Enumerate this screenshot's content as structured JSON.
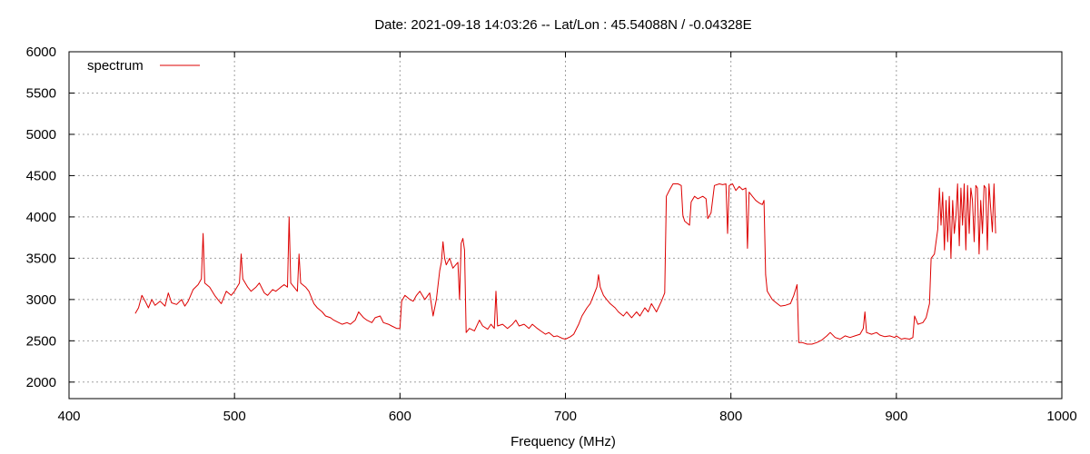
{
  "chart_data": {
    "type": "line",
    "title": "Date: 2021-09-18 14:03:26  --  Lat/Lon : 45.54088N / -0.04328E",
    "xlabel": "Frequency (MHz)",
    "ylabel": "",
    "xlim": [
      400,
      1000
    ],
    "ylim": [
      1800,
      6000
    ],
    "x_ticks": [
      400,
      500,
      600,
      700,
      800,
      900,
      1000
    ],
    "y_ticks": [
      2000,
      2500,
      3000,
      3500,
      4000,
      4500,
      5000,
      5500,
      6000
    ],
    "grid": true,
    "legend_position": "top-left",
    "series": [
      {
        "name": "spectrum",
        "color": "#dd0000",
        "points": [
          [
            440,
            2830
          ],
          [
            442,
            2900
          ],
          [
            444,
            3050
          ],
          [
            446,
            2980
          ],
          [
            448,
            2900
          ],
          [
            450,
            3000
          ],
          [
            452,
            2930
          ],
          [
            455,
            2980
          ],
          [
            458,
            2920
          ],
          [
            460,
            3080
          ],
          [
            462,
            2960
          ],
          [
            465,
            2940
          ],
          [
            468,
            3000
          ],
          [
            470,
            2920
          ],
          [
            472,
            2980
          ],
          [
            475,
            3120
          ],
          [
            478,
            3180
          ],
          [
            480,
            3250
          ],
          [
            481,
            3800
          ],
          [
            482,
            3200
          ],
          [
            485,
            3150
          ],
          [
            488,
            3050
          ],
          [
            490,
            3000
          ],
          [
            492,
            2950
          ],
          [
            495,
            3100
          ],
          [
            498,
            3050
          ],
          [
            500,
            3100
          ],
          [
            503,
            3200
          ],
          [
            504,
            3550
          ],
          [
            505,
            3250
          ],
          [
            508,
            3150
          ],
          [
            510,
            3100
          ],
          [
            513,
            3150
          ],
          [
            515,
            3200
          ],
          [
            518,
            3080
          ],
          [
            520,
            3050
          ],
          [
            523,
            3120
          ],
          [
            525,
            3100
          ],
          [
            528,
            3150
          ],
          [
            530,
            3180
          ],
          [
            532,
            3150
          ],
          [
            533,
            4000
          ],
          [
            534,
            3200
          ],
          [
            536,
            3150
          ],
          [
            538,
            3100
          ],
          [
            539,
            3550
          ],
          [
            540,
            3200
          ],
          [
            543,
            3150
          ],
          [
            545,
            3100
          ],
          [
            548,
            2950
          ],
          [
            550,
            2900
          ],
          [
            553,
            2850
          ],
          [
            555,
            2800
          ],
          [
            558,
            2780
          ],
          [
            560,
            2750
          ],
          [
            563,
            2720
          ],
          [
            565,
            2700
          ],
          [
            568,
            2720
          ],
          [
            570,
            2700
          ],
          [
            573,
            2750
          ],
          [
            575,
            2850
          ],
          [
            578,
            2780
          ],
          [
            580,
            2750
          ],
          [
            583,
            2720
          ],
          [
            585,
            2780
          ],
          [
            588,
            2800
          ],
          [
            590,
            2720
          ],
          [
            593,
            2700
          ],
          [
            595,
            2680
          ],
          [
            598,
            2650
          ],
          [
            600,
            2650
          ],
          [
            601,
            2980
          ],
          [
            603,
            3050
          ],
          [
            606,
            3000
          ],
          [
            608,
            2980
          ],
          [
            610,
            3050
          ],
          [
            612,
            3100
          ],
          [
            615,
            3000
          ],
          [
            618,
            3080
          ],
          [
            620,
            2800
          ],
          [
            622,
            3000
          ],
          [
            624,
            3350
          ],
          [
            625,
            3450
          ],
          [
            626,
            3700
          ],
          [
            627,
            3500
          ],
          [
            628,
            3420
          ],
          [
            630,
            3500
          ],
          [
            632,
            3380
          ],
          [
            635,
            3450
          ],
          [
            636,
            3000
          ],
          [
            637,
            3680
          ],
          [
            638,
            3740
          ],
          [
            639,
            3600
          ],
          [
            640,
            2600
          ],
          [
            642,
            2650
          ],
          [
            645,
            2620
          ],
          [
            648,
            2750
          ],
          [
            650,
            2680
          ],
          [
            653,
            2640
          ],
          [
            655,
            2700
          ],
          [
            657,
            2650
          ],
          [
            658,
            3100
          ],
          [
            659,
            2680
          ],
          [
            662,
            2700
          ],
          [
            665,
            2650
          ],
          [
            668,
            2700
          ],
          [
            670,
            2750
          ],
          [
            672,
            2680
          ],
          [
            675,
            2700
          ],
          [
            678,
            2650
          ],
          [
            680,
            2700
          ],
          [
            683,
            2650
          ],
          [
            685,
            2620
          ],
          [
            688,
            2580
          ],
          [
            690,
            2600
          ],
          [
            693,
            2550
          ],
          [
            695,
            2560
          ],
          [
            698,
            2530
          ],
          [
            700,
            2520
          ],
          [
            703,
            2550
          ],
          [
            705,
            2580
          ],
          [
            708,
            2700
          ],
          [
            710,
            2800
          ],
          [
            713,
            2900
          ],
          [
            715,
            2950
          ],
          [
            717,
            3050
          ],
          [
            719,
            3150
          ],
          [
            720,
            3300
          ],
          [
            721,
            3150
          ],
          [
            723,
            3050
          ],
          [
            725,
            3000
          ],
          [
            727,
            2950
          ],
          [
            730,
            2900
          ],
          [
            732,
            2850
          ],
          [
            735,
            2800
          ],
          [
            737,
            2850
          ],
          [
            740,
            2780
          ],
          [
            743,
            2850
          ],
          [
            745,
            2800
          ],
          [
            748,
            2900
          ],
          [
            750,
            2850
          ],
          [
            752,
            2950
          ],
          [
            755,
            2850
          ],
          [
            758,
            2980
          ],
          [
            760,
            3080
          ],
          [
            761,
            4250
          ],
          [
            763,
            4330
          ],
          [
            765,
            4400
          ],
          [
            768,
            4400
          ],
          [
            770,
            4380
          ],
          [
            771,
            4020
          ],
          [
            772,
            3950
          ],
          [
            775,
            3900
          ],
          [
            776,
            4180
          ],
          [
            778,
            4250
          ],
          [
            780,
            4220
          ],
          [
            783,
            4250
          ],
          [
            785,
            4220
          ],
          [
            786,
            3980
          ],
          [
            788,
            4050
          ],
          [
            790,
            4380
          ],
          [
            793,
            4400
          ],
          [
            795,
            4390
          ],
          [
            797,
            4400
          ],
          [
            798,
            3800
          ],
          [
            799,
            4380
          ],
          [
            801,
            4400
          ],
          [
            803,
            4320
          ],
          [
            805,
            4370
          ],
          [
            807,
            4330
          ],
          [
            809,
            4350
          ],
          [
            810,
            3620
          ],
          [
            811,
            4300
          ],
          [
            813,
            4250
          ],
          [
            815,
            4200
          ],
          [
            817,
            4170
          ],
          [
            819,
            4150
          ],
          [
            820,
            4200
          ],
          [
            821,
            3300
          ],
          [
            822,
            3100
          ],
          [
            825,
            3000
          ],
          [
            828,
            2950
          ],
          [
            830,
            2920
          ],
          [
            833,
            2930
          ],
          [
            836,
            2950
          ],
          [
            838,
            3050
          ],
          [
            840,
            3180
          ],
          [
            841,
            2480
          ],
          [
            843,
            2480
          ],
          [
            846,
            2460
          ],
          [
            849,
            2460
          ],
          [
            852,
            2480
          ],
          [
            855,
            2510
          ],
          [
            858,
            2560
          ],
          [
            860,
            2600
          ],
          [
            863,
            2540
          ],
          [
            866,
            2520
          ],
          [
            869,
            2560
          ],
          [
            872,
            2540
          ],
          [
            875,
            2560
          ],
          [
            878,
            2580
          ],
          [
            880,
            2650
          ],
          [
            881,
            2850
          ],
          [
            882,
            2600
          ],
          [
            885,
            2580
          ],
          [
            888,
            2600
          ],
          [
            890,
            2570
          ],
          [
            893,
            2550
          ],
          [
            896,
            2560
          ],
          [
            899,
            2540
          ],
          [
            900,
            2560
          ],
          [
            903,
            2520
          ],
          [
            905,
            2530
          ],
          [
            908,
            2520
          ],
          [
            910,
            2540
          ],
          [
            911,
            2800
          ],
          [
            913,
            2700
          ],
          [
            916,
            2720
          ],
          [
            918,
            2780
          ],
          [
            920,
            2950
          ],
          [
            921,
            3500
          ],
          [
            923,
            3550
          ],
          [
            925,
            3850
          ],
          [
            926,
            4350
          ],
          [
            927,
            3900
          ],
          [
            928,
            4300
          ],
          [
            929,
            3600
          ],
          [
            930,
            4200
          ],
          [
            931,
            3700
          ],
          [
            932,
            4250
          ],
          [
            933,
            3500
          ],
          [
            934,
            4200
          ],
          [
            935,
            3800
          ],
          [
            936,
            4000
          ],
          [
            937,
            4400
          ],
          [
            938,
            3650
          ],
          [
            939,
            4350
          ],
          [
            940,
            3900
          ],
          [
            941,
            4400
          ],
          [
            942,
            3600
          ],
          [
            943,
            4380
          ],
          [
            944,
            3800
          ],
          [
            945,
            4350
          ],
          [
            946,
            4200
          ],
          [
            947,
            3700
          ],
          [
            948,
            4380
          ],
          [
            949,
            4350
          ],
          [
            950,
            3550
          ],
          [
            951,
            4200
          ],
          [
            952,
            3800
          ],
          [
            953,
            4380
          ],
          [
            954,
            4350
          ],
          [
            955,
            3600
          ],
          [
            956,
            4400
          ],
          [
            957,
            4100
          ],
          [
            958,
            3820
          ],
          [
            959,
            4400
          ],
          [
            960,
            3800
          ]
        ]
      }
    ]
  }
}
